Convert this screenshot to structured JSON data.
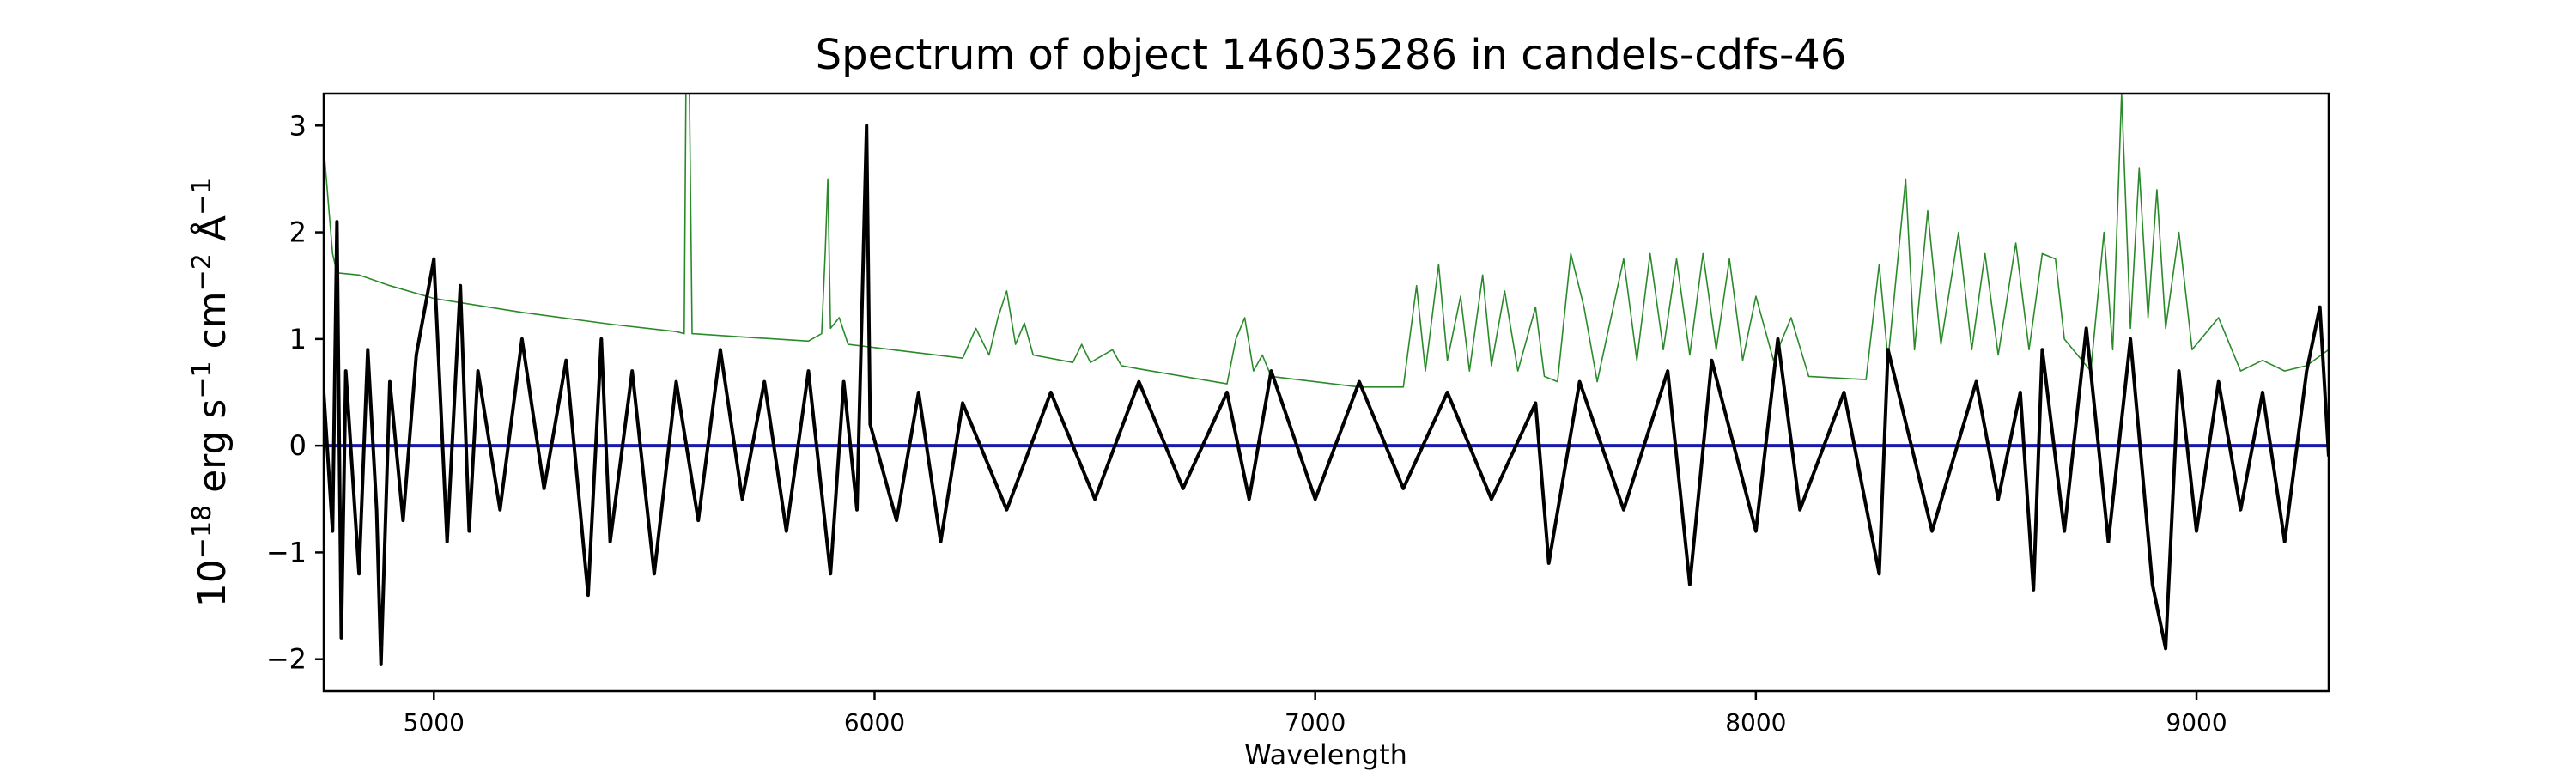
{
  "chart_data": {
    "type": "line",
    "title": "Spectrum of object 146035286 in candels-cdfs-46",
    "xlabel": "Wavelength",
    "ylabel_parts": {
      "base": "10",
      "exp1": "−18",
      "erg": " erg s",
      "exp2": "−1",
      "cm": " cm",
      "exp3": "−2",
      "ang": " Å",
      "exp4": "−1"
    },
    "xlim": [
      4750,
      9300
    ],
    "ylim": [
      -2.3,
      3.3
    ],
    "x_ticks": [
      5000,
      6000,
      7000,
      8000,
      9000
    ],
    "x_tick_labels": [
      "5000",
      "6000",
      "7000",
      "8000",
      "9000"
    ],
    "y_ticks": [
      -2,
      -1,
      0,
      1,
      2,
      3
    ],
    "y_tick_labels": [
      "−2",
      "−1",
      "0",
      "1",
      "2",
      "3"
    ],
    "grid": false,
    "series": [
      {
        "role": "error",
        "color": "#2a8a2a",
        "points": [
          [
            4750,
            2.8
          ],
          [
            4760,
            2.3
          ],
          [
            4770,
            1.8
          ],
          [
            4780,
            1.62
          ],
          [
            4830,
            1.6
          ],
          [
            4900,
            1.5
          ],
          [
            5000,
            1.38
          ],
          [
            5200,
            1.25
          ],
          [
            5400,
            1.14
          ],
          [
            5550,
            1.07
          ],
          [
            5568,
            1.05
          ],
          [
            5572,
            3.3
          ],
          [
            5580,
            3.3
          ],
          [
            5586,
            1.05
          ],
          [
            5700,
            1.02
          ],
          [
            5850,
            0.98
          ],
          [
            5880,
            1.05
          ],
          [
            5888,
            1.8
          ],
          [
            5894,
            2.5
          ],
          [
            5900,
            1.1
          ],
          [
            5920,
            1.2
          ],
          [
            5940,
            0.95
          ],
          [
            6000,
            0.92
          ],
          [
            6200,
            0.82
          ],
          [
            6230,
            1.1
          ],
          [
            6260,
            0.85
          ],
          [
            6280,
            1.2
          ],
          [
            6300,
            1.45
          ],
          [
            6320,
            0.95
          ],
          [
            6340,
            1.15
          ],
          [
            6360,
            0.85
          ],
          [
            6450,
            0.78
          ],
          [
            6470,
            0.95
          ],
          [
            6490,
            0.78
          ],
          [
            6540,
            0.9
          ],
          [
            6560,
            0.75
          ],
          [
            6600,
            0.72
          ],
          [
            6800,
            0.58
          ],
          [
            6820,
            1.0
          ],
          [
            6840,
            1.2
          ],
          [
            6860,
            0.7
          ],
          [
            6880,
            0.85
          ],
          [
            6900,
            0.65
          ],
          [
            7100,
            0.55
          ],
          [
            7200,
            0.55
          ],
          [
            7230,
            1.5
          ],
          [
            7250,
            0.7
          ],
          [
            7280,
            1.7
          ],
          [
            7300,
            0.8
          ],
          [
            7330,
            1.4
          ],
          [
            7350,
            0.7
          ],
          [
            7380,
            1.6
          ],
          [
            7400,
            0.75
          ],
          [
            7430,
            1.45
          ],
          [
            7460,
            0.7
          ],
          [
            7500,
            1.3
          ],
          [
            7520,
            0.65
          ],
          [
            7550,
            0.6
          ],
          [
            7580,
            1.8
          ],
          [
            7610,
            1.3
          ],
          [
            7640,
            0.6
          ],
          [
            7700,
            1.75
          ],
          [
            7730,
            0.8
          ],
          [
            7760,
            1.8
          ],
          [
            7790,
            0.9
          ],
          [
            7820,
            1.75
          ],
          [
            7850,
            0.85
          ],
          [
            7880,
            1.8
          ],
          [
            7910,
            0.9
          ],
          [
            7940,
            1.75
          ],
          [
            7970,
            0.8
          ],
          [
            8000,
            1.4
          ],
          [
            8040,
            0.8
          ],
          [
            8080,
            1.2
          ],
          [
            8120,
            0.65
          ],
          [
            8250,
            0.62
          ],
          [
            8280,
            1.7
          ],
          [
            8300,
            0.8
          ],
          [
            8340,
            2.5
          ],
          [
            8360,
            0.9
          ],
          [
            8390,
            2.2
          ],
          [
            8420,
            0.95
          ],
          [
            8460,
            2.0
          ],
          [
            8490,
            0.9
          ],
          [
            8520,
            1.8
          ],
          [
            8550,
            0.85
          ],
          [
            8590,
            1.9
          ],
          [
            8620,
            0.9
          ],
          [
            8650,
            1.8
          ],
          [
            8680,
            1.75
          ],
          [
            8700,
            1.0
          ],
          [
            8760,
            0.7
          ],
          [
            8790,
            2.0
          ],
          [
            8810,
            0.9
          ],
          [
            8830,
            3.3
          ],
          [
            8850,
            1.1
          ],
          [
            8870,
            2.6
          ],
          [
            8890,
            1.2
          ],
          [
            8910,
            2.4
          ],
          [
            8930,
            1.1
          ],
          [
            8960,
            2.0
          ],
          [
            8990,
            0.9
          ],
          [
            9050,
            1.2
          ],
          [
            9100,
            0.7
          ],
          [
            9150,
            0.8
          ],
          [
            9200,
            0.7
          ],
          [
            9250,
            0.75
          ],
          [
            9300,
            0.9
          ]
        ]
      },
      {
        "role": "model",
        "color": "#1a1aaa",
        "points": [
          [
            4750,
            0
          ],
          [
            9300,
            0
          ]
        ]
      },
      {
        "role": "flux",
        "color": "#000000",
        "points": [
          [
            4750,
            0.5
          ],
          [
            4770,
            -0.8
          ],
          [
            4780,
            2.1
          ],
          [
            4790,
            -1.8
          ],
          [
            4800,
            0.7
          ],
          [
            4830,
            -1.2
          ],
          [
            4850,
            0.9
          ],
          [
            4870,
            -0.6
          ],
          [
            4880,
            -2.05
          ],
          [
            4900,
            0.6
          ],
          [
            4930,
            -0.7
          ],
          [
            4960,
            0.85
          ],
          [
            5000,
            1.75
          ],
          [
            5030,
            -0.9
          ],
          [
            5060,
            1.5
          ],
          [
            5080,
            -0.8
          ],
          [
            5100,
            0.7
          ],
          [
            5150,
            -0.6
          ],
          [
            5200,
            1.0
          ],
          [
            5250,
            -0.4
          ],
          [
            5300,
            0.8
          ],
          [
            5350,
            -1.4
          ],
          [
            5380,
            1.0
          ],
          [
            5400,
            -0.9
          ],
          [
            5450,
            0.7
          ],
          [
            5500,
            -1.2
          ],
          [
            5550,
            0.6
          ],
          [
            5600,
            -0.7
          ],
          [
            5650,
            0.9
          ],
          [
            5700,
            -0.5
          ],
          [
            5750,
            0.6
          ],
          [
            5800,
            -0.8
          ],
          [
            5850,
            0.7
          ],
          [
            5900,
            -1.2
          ],
          [
            5930,
            0.6
          ],
          [
            5960,
            -0.6
          ],
          [
            5982,
            3.0
          ],
          [
            5990,
            0.2
          ],
          [
            6050,
            -0.7
          ],
          [
            6100,
            0.5
          ],
          [
            6150,
            -0.9
          ],
          [
            6200,
            0.4
          ],
          [
            6300,
            -0.6
          ],
          [
            6400,
            0.5
          ],
          [
            6500,
            -0.5
          ],
          [
            6600,
            0.6
          ],
          [
            6700,
            -0.4
          ],
          [
            6800,
            0.5
          ],
          [
            6850,
            -0.5
          ],
          [
            6900,
            0.7
          ],
          [
            7000,
            -0.5
          ],
          [
            7100,
            0.6
          ],
          [
            7200,
            -0.4
          ],
          [
            7300,
            0.5
          ],
          [
            7400,
            -0.5
          ],
          [
            7500,
            0.4
          ],
          [
            7530,
            -1.1
          ],
          [
            7600,
            0.6
          ],
          [
            7700,
            -0.6
          ],
          [
            7800,
            0.7
          ],
          [
            7850,
            -1.3
          ],
          [
            7900,
            0.8
          ],
          [
            8000,
            -0.8
          ],
          [
            8050,
            1.0
          ],
          [
            8100,
            -0.6
          ],
          [
            8200,
            0.5
          ],
          [
            8280,
            -1.2
          ],
          [
            8300,
            0.9
          ],
          [
            8400,
            -0.8
          ],
          [
            8500,
            0.6
          ],
          [
            8550,
            -0.5
          ],
          [
            8600,
            0.5
          ],
          [
            8630,
            -1.35
          ],
          [
            8650,
            0.9
          ],
          [
            8700,
            -0.8
          ],
          [
            8750,
            1.1
          ],
          [
            8800,
            -0.9
          ],
          [
            8850,
            1.0
          ],
          [
            8900,
            -1.3
          ],
          [
            8930,
            -1.9
          ],
          [
            8960,
            0.7
          ],
          [
            9000,
            -0.8
          ],
          [
            9050,
            0.6
          ],
          [
            9100,
            -0.6
          ],
          [
            9150,
            0.5
          ],
          [
            9200,
            -0.9
          ],
          [
            9250,
            0.7
          ],
          [
            9280,
            1.3
          ],
          [
            9300,
            -0.1
          ]
        ]
      }
    ]
  }
}
